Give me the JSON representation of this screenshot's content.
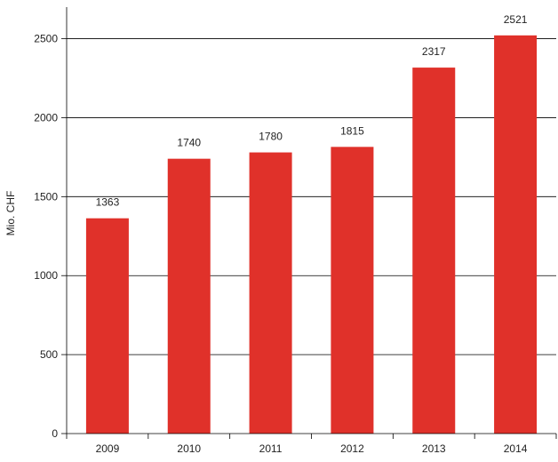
{
  "colors": {
    "bar": "#e0312a",
    "grid": "#000000",
    "text": "#222222"
  },
  "chart_data": {
    "type": "bar",
    "title": "",
    "xlabel": "",
    "ylabel": "Mio. CHF",
    "categories": [
      "2009",
      "2010",
      "2011",
      "2012",
      "2013",
      "2014"
    ],
    "values": [
      1363,
      1740,
      1780,
      1815,
      2317,
      2521
    ],
    "value_labels": [
      "1363",
      "1740",
      "1780",
      "1815",
      "2317",
      "2521"
    ],
    "ylim": [
      0,
      2700
    ],
    "yticks": [
      0,
      500,
      1000,
      1500,
      2000,
      2500
    ],
    "ytick_labels": [
      "0",
      "500",
      "1000",
      "1500",
      "2000",
      "2500"
    ],
    "grid": true,
    "legend": "none"
  }
}
